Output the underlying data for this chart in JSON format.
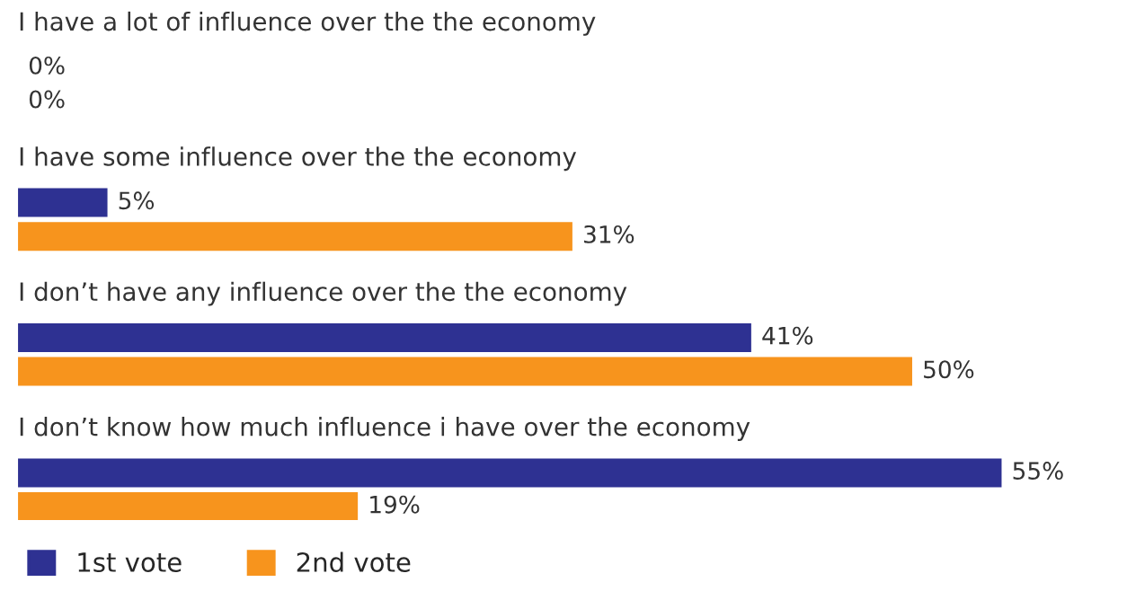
{
  "chart_data": {
    "type": "bar",
    "orientation": "horizontal",
    "categories": [
      "I have a lot of influence over the the economy",
      "I have some influence over the the economy",
      "I don’t have any influence over the the economy",
      "I don’t know how much influence i have over the economy"
    ],
    "series": [
      {
        "name": "1st vote",
        "color": "#2e3192",
        "values": [
          0,
          5,
          41,
          55
        ],
        "value_labels": [
          "0%",
          "5%",
          "41%",
          "55%"
        ]
      },
      {
        "name": "2nd vote",
        "color": "#f7941d",
        "values": [
          0,
          31,
          50,
          19
        ],
        "value_labels": [
          "0%",
          "31%",
          "50%",
          "19%"
        ]
      }
    ],
    "legend": "bottom left"
  }
}
